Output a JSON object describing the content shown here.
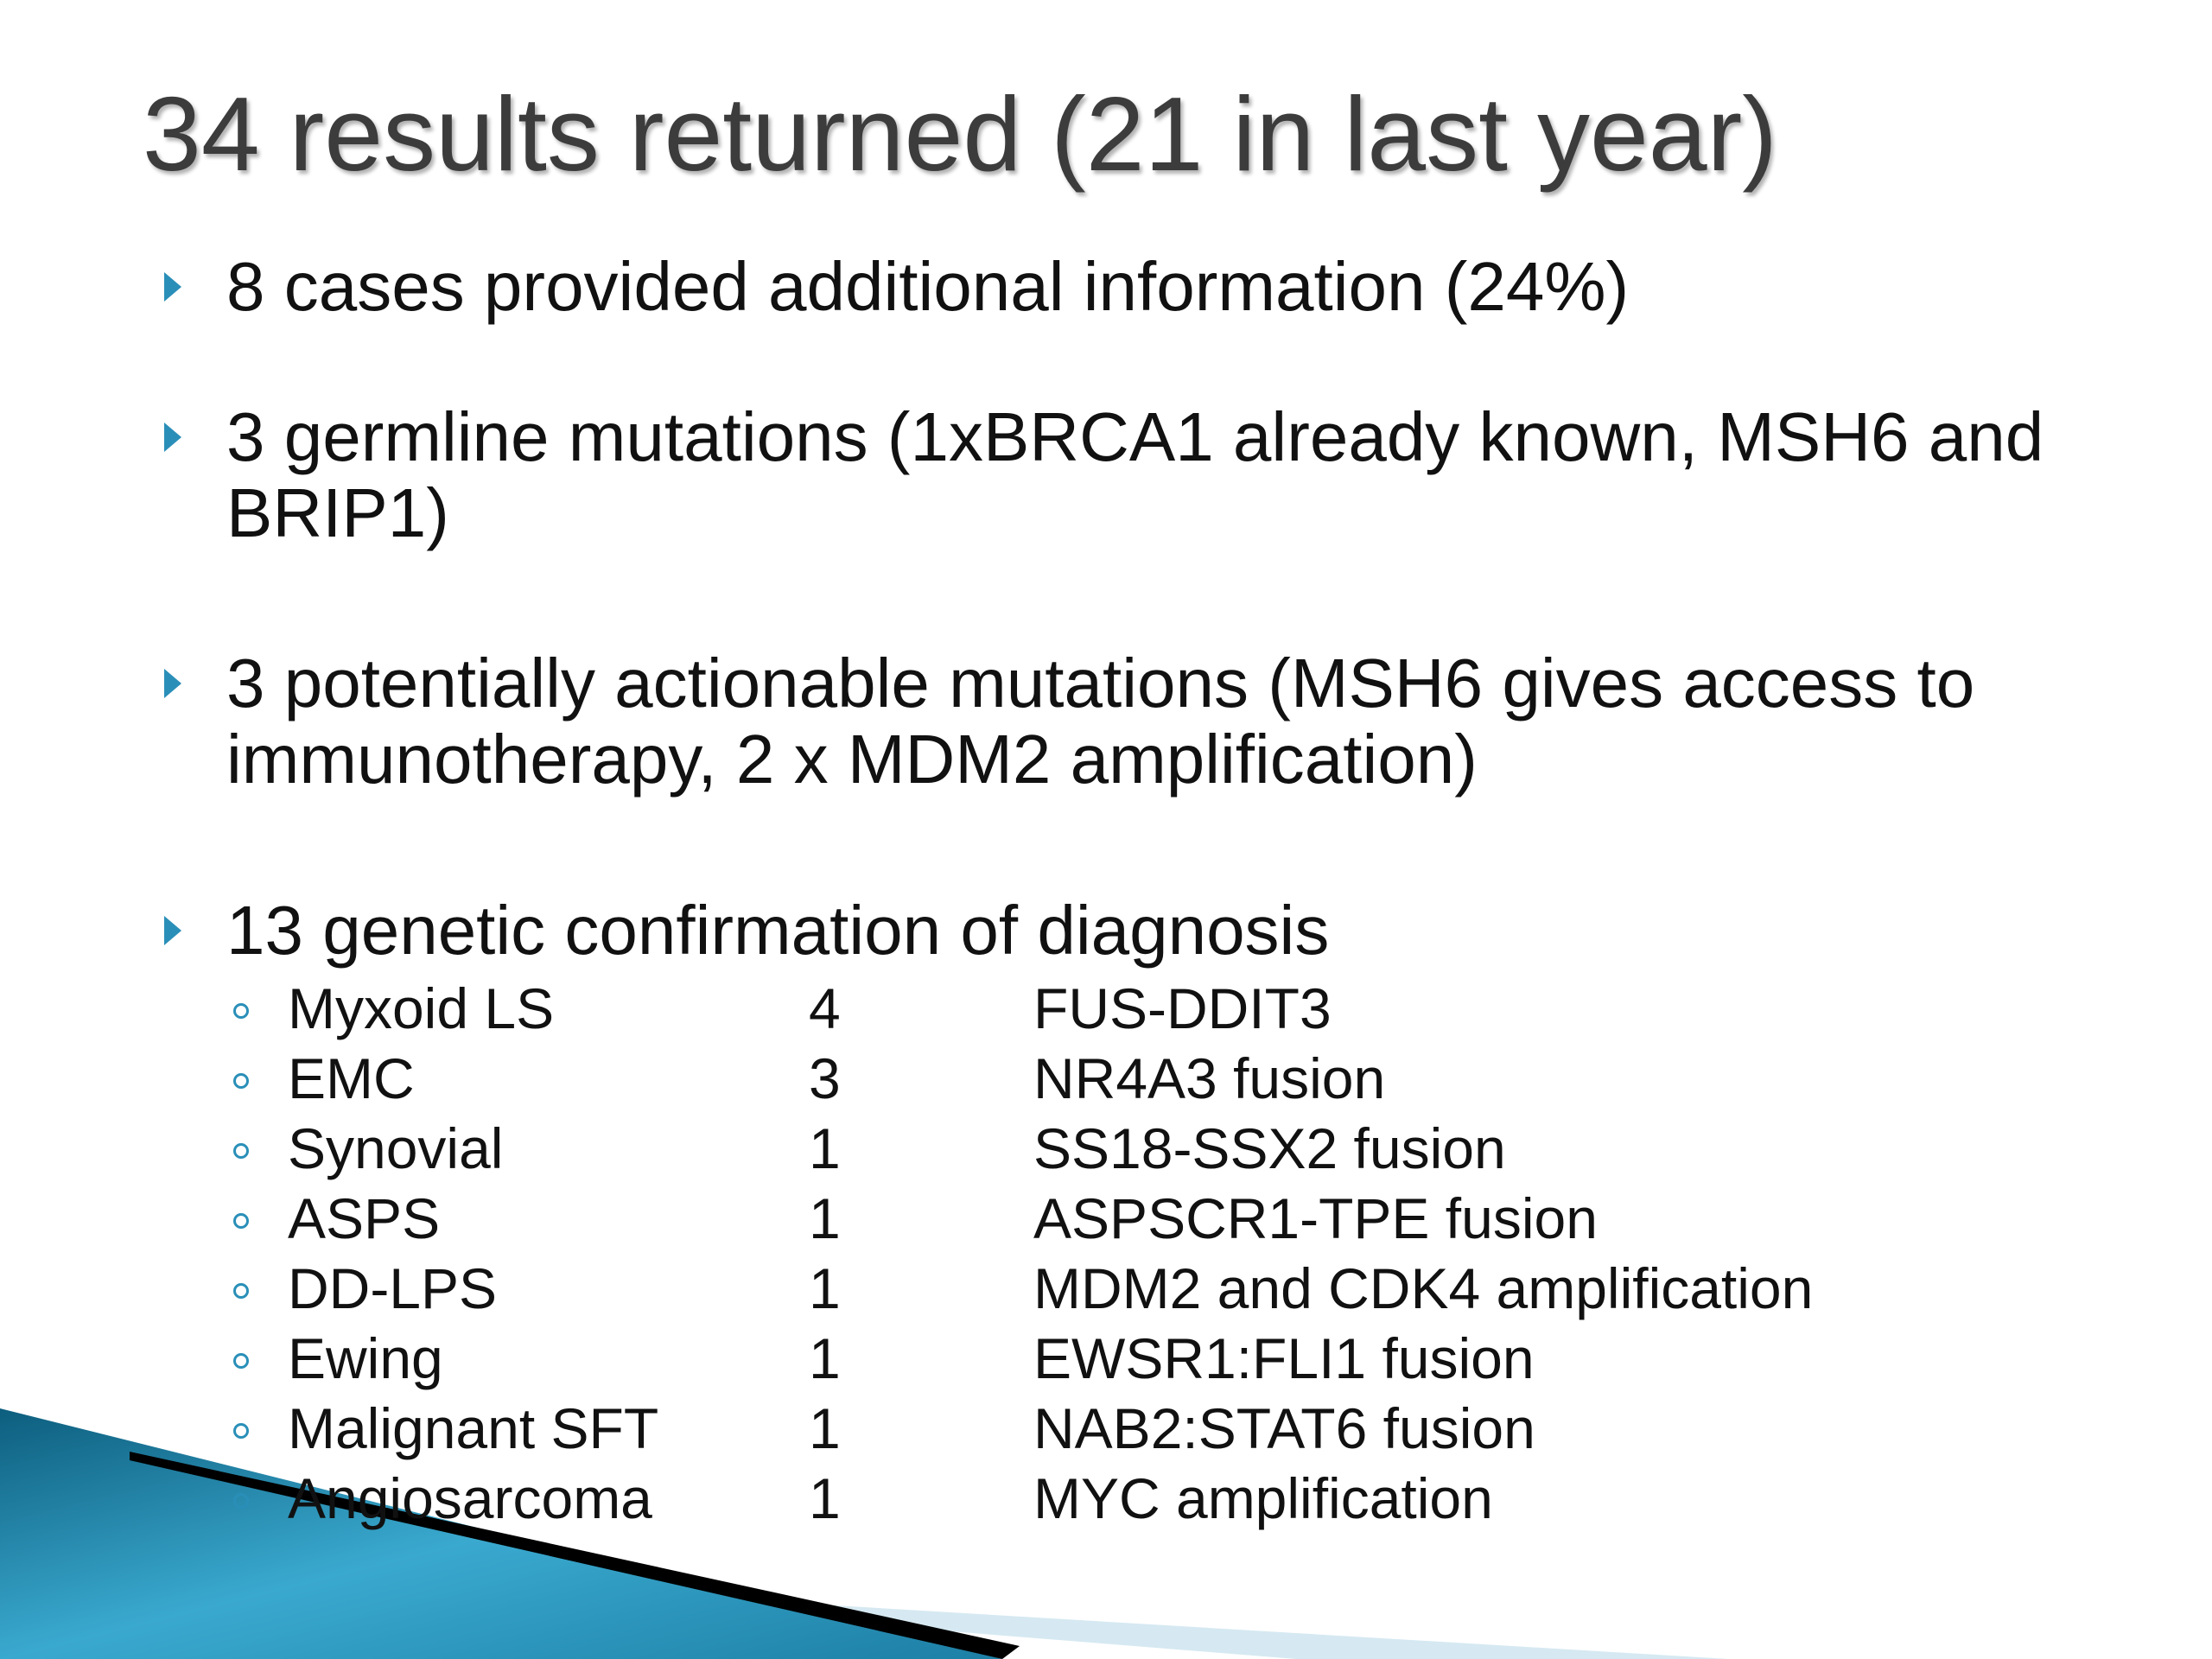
{
  "title": "34 results returned (21 in last year)",
  "bullets": [
    "8 cases provided additional information (24%)",
    "3 germline mutations (1xBRCA1 already known, MSH6 and BRIP1)",
    "3 potentially actionable mutations (MSH6 gives access to immunotherapy, 2 x MDM2 amplification)",
    "13 genetic confirmation of diagnosis"
  ],
  "table": {
    "rows": [
      [
        "Myxoid LS",
        4,
        "FUS-DDIT3"
      ],
      [
        "EMC",
        3,
        "NR4A3 fusion"
      ],
      [
        "Synovial",
        1,
        "SS18-SSX2 fusion"
      ],
      [
        "ASPS",
        1,
        "ASPSCR1-TPE fusion"
      ],
      [
        "DD-LPS",
        1,
        "MDM2 and CDK4 amplification"
      ],
      [
        "Ewing",
        1,
        "EWSR1:FLI1 fusion"
      ],
      [
        "Malignant SFT",
        1,
        "NAB2:STAT6 fusion"
      ],
      [
        "Angiosarcoma",
        1,
        "MYC amplification"
      ]
    ]
  }
}
